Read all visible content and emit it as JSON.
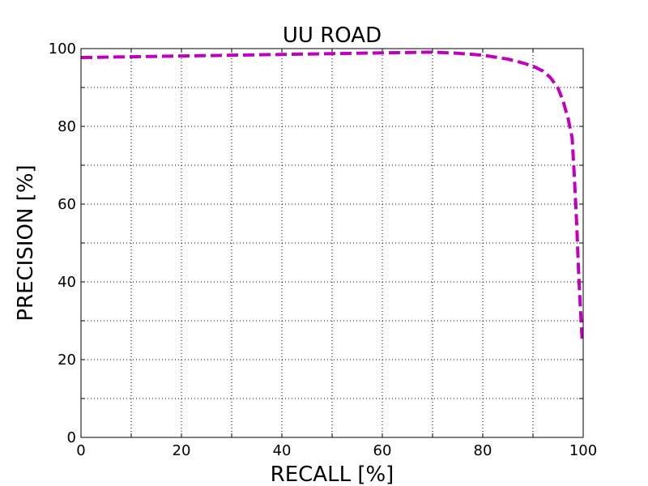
{
  "chart_data": {
    "type": "line",
    "title": "UU ROAD",
    "x_label": "RECALL [%]",
    "y_label": "PRECISION [%]",
    "x": [
      0,
      10,
      20,
      30,
      40,
      50,
      60,
      70,
      75,
      80,
      85,
      88,
      90,
      92,
      93.5,
      95,
      96,
      97,
      97.8,
      98.2,
      98.7,
      99.1,
      99.5,
      99.8
    ],
    "series": [
      {
        "name": "UU ROAD",
        "color": "#bf00bf",
        "values": [
          97.7,
          97.9,
          98.1,
          98.3,
          98.5,
          98.7,
          98.9,
          99.1,
          98.8,
          98.3,
          97.3,
          96.3,
          95.5,
          94.2,
          92.5,
          89.8,
          86.5,
          82,
          77,
          68,
          55,
          42,
          32,
          25
        ]
      }
    ],
    "xlim": [
      0,
      100
    ],
    "ylim": [
      0,
      100
    ],
    "xticks": [
      0,
      20,
      40,
      60,
      80,
      100
    ],
    "yticks": [
      0,
      20,
      40,
      60,
      80,
      100
    ],
    "minor_xticks": [
      10,
      30,
      50,
      70,
      90
    ],
    "minor_yticks": [
      10,
      30,
      50,
      70,
      90
    ],
    "grid": true,
    "line_style": "dashed"
  }
}
